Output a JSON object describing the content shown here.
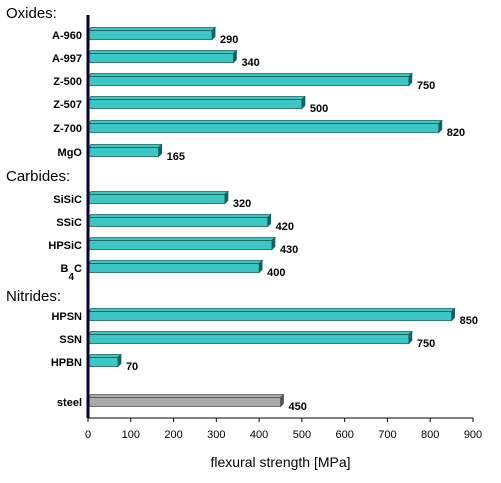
{
  "chart_data": {
    "type": "bar",
    "orientation": "horizontal",
    "xlabel": "flexural strength [MPa]",
    "ylabel": "",
    "xlim": [
      0,
      900
    ],
    "xticks": [
      0,
      100,
      200,
      300,
      400,
      500,
      600,
      700,
      800,
      900
    ],
    "grid": false,
    "colors": {
      "bar": "#3cc6c4",
      "bar_edge": "#1a5e5d",
      "steel": "#a9a9a9",
      "steel_edge": "#555555",
      "axis": "#000033"
    },
    "groups": [
      {
        "label": "Oxides:",
        "items": [
          {
            "category": "A-960",
            "value": 290
          },
          {
            "category": "A-997",
            "value": 340
          },
          {
            "category": "Z-500",
            "value": 750
          },
          {
            "category": "Z-507",
            "value": 500
          },
          {
            "category": "Z-700",
            "value": 820
          },
          {
            "category": "MgO",
            "value": 165
          }
        ]
      },
      {
        "label": "Carbides:",
        "items": [
          {
            "category": "SiSiC",
            "value": 320
          },
          {
            "category": "SSiC",
            "value": 420
          },
          {
            "category": "HPSiC",
            "value": 430
          },
          {
            "category": "B4C",
            "category_main": "B",
            "category_sub": "4",
            "category_tail": "C",
            "value": 400
          }
        ]
      },
      {
        "label": "Nitrides:",
        "items": [
          {
            "category": "HPSN",
            "value": 850
          },
          {
            "category": "SSN",
            "value": 750
          },
          {
            "category": "HPBN",
            "value": 70
          }
        ]
      },
      {
        "label": "",
        "items": [
          {
            "category": "steel",
            "value": 450,
            "gray": true
          }
        ]
      }
    ]
  }
}
